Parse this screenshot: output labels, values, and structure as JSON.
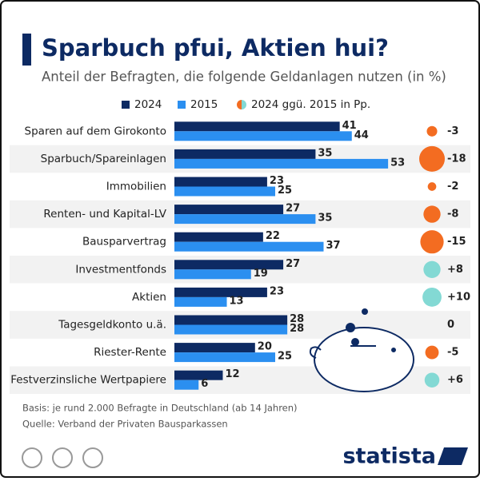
{
  "chart_data": {
    "type": "bar",
    "title": "Sparbuch pfui, Aktien hui?",
    "subtitle": "Anteil der Befragten, die folgende Geldanlagen nutzen (in %)",
    "categories": [
      "Sparen auf dem Girokonto",
      "Sparbuch/Spareinlagen",
      "Immobilien",
      "Renten- und Kapital-LV",
      "Bausparvertrag",
      "Investmentfonds",
      "Aktien",
      "Tagesgeldkonto u.ä.",
      "Riester-Rente",
      "Festverzinsliche Wertpapiere"
    ],
    "series": [
      {
        "name": "2024",
        "color": "#0d2a63",
        "values": [
          41,
          35,
          23,
          27,
          22,
          27,
          23,
          28,
          20,
          12
        ]
      },
      {
        "name": "2015",
        "color": "#2b8ff0",
        "values": [
          44,
          53,
          25,
          35,
          37,
          19,
          13,
          28,
          25,
          6
        ]
      }
    ],
    "change": {
      "name": "2024 ggü. 2015 in Pp.",
      "negative_color": "#f36c21",
      "positive_color": "#83d9d4",
      "values": [
        -3,
        -18,
        -2,
        -8,
        -15,
        8,
        10,
        0,
        -5,
        6
      ],
      "value_labels": [
        "-3",
        "-18",
        "-2",
        "-8",
        "-15",
        "+8",
        "+10",
        "0",
        "-5",
        "+6"
      ]
    },
    "notes": [
      "Basis: je rund 2.000 Befragte in Deutschland (ab 14 Jahren)",
      "Quelle: Verband der Privaten Bausparkassen"
    ],
    "brand": "statista"
  }
}
